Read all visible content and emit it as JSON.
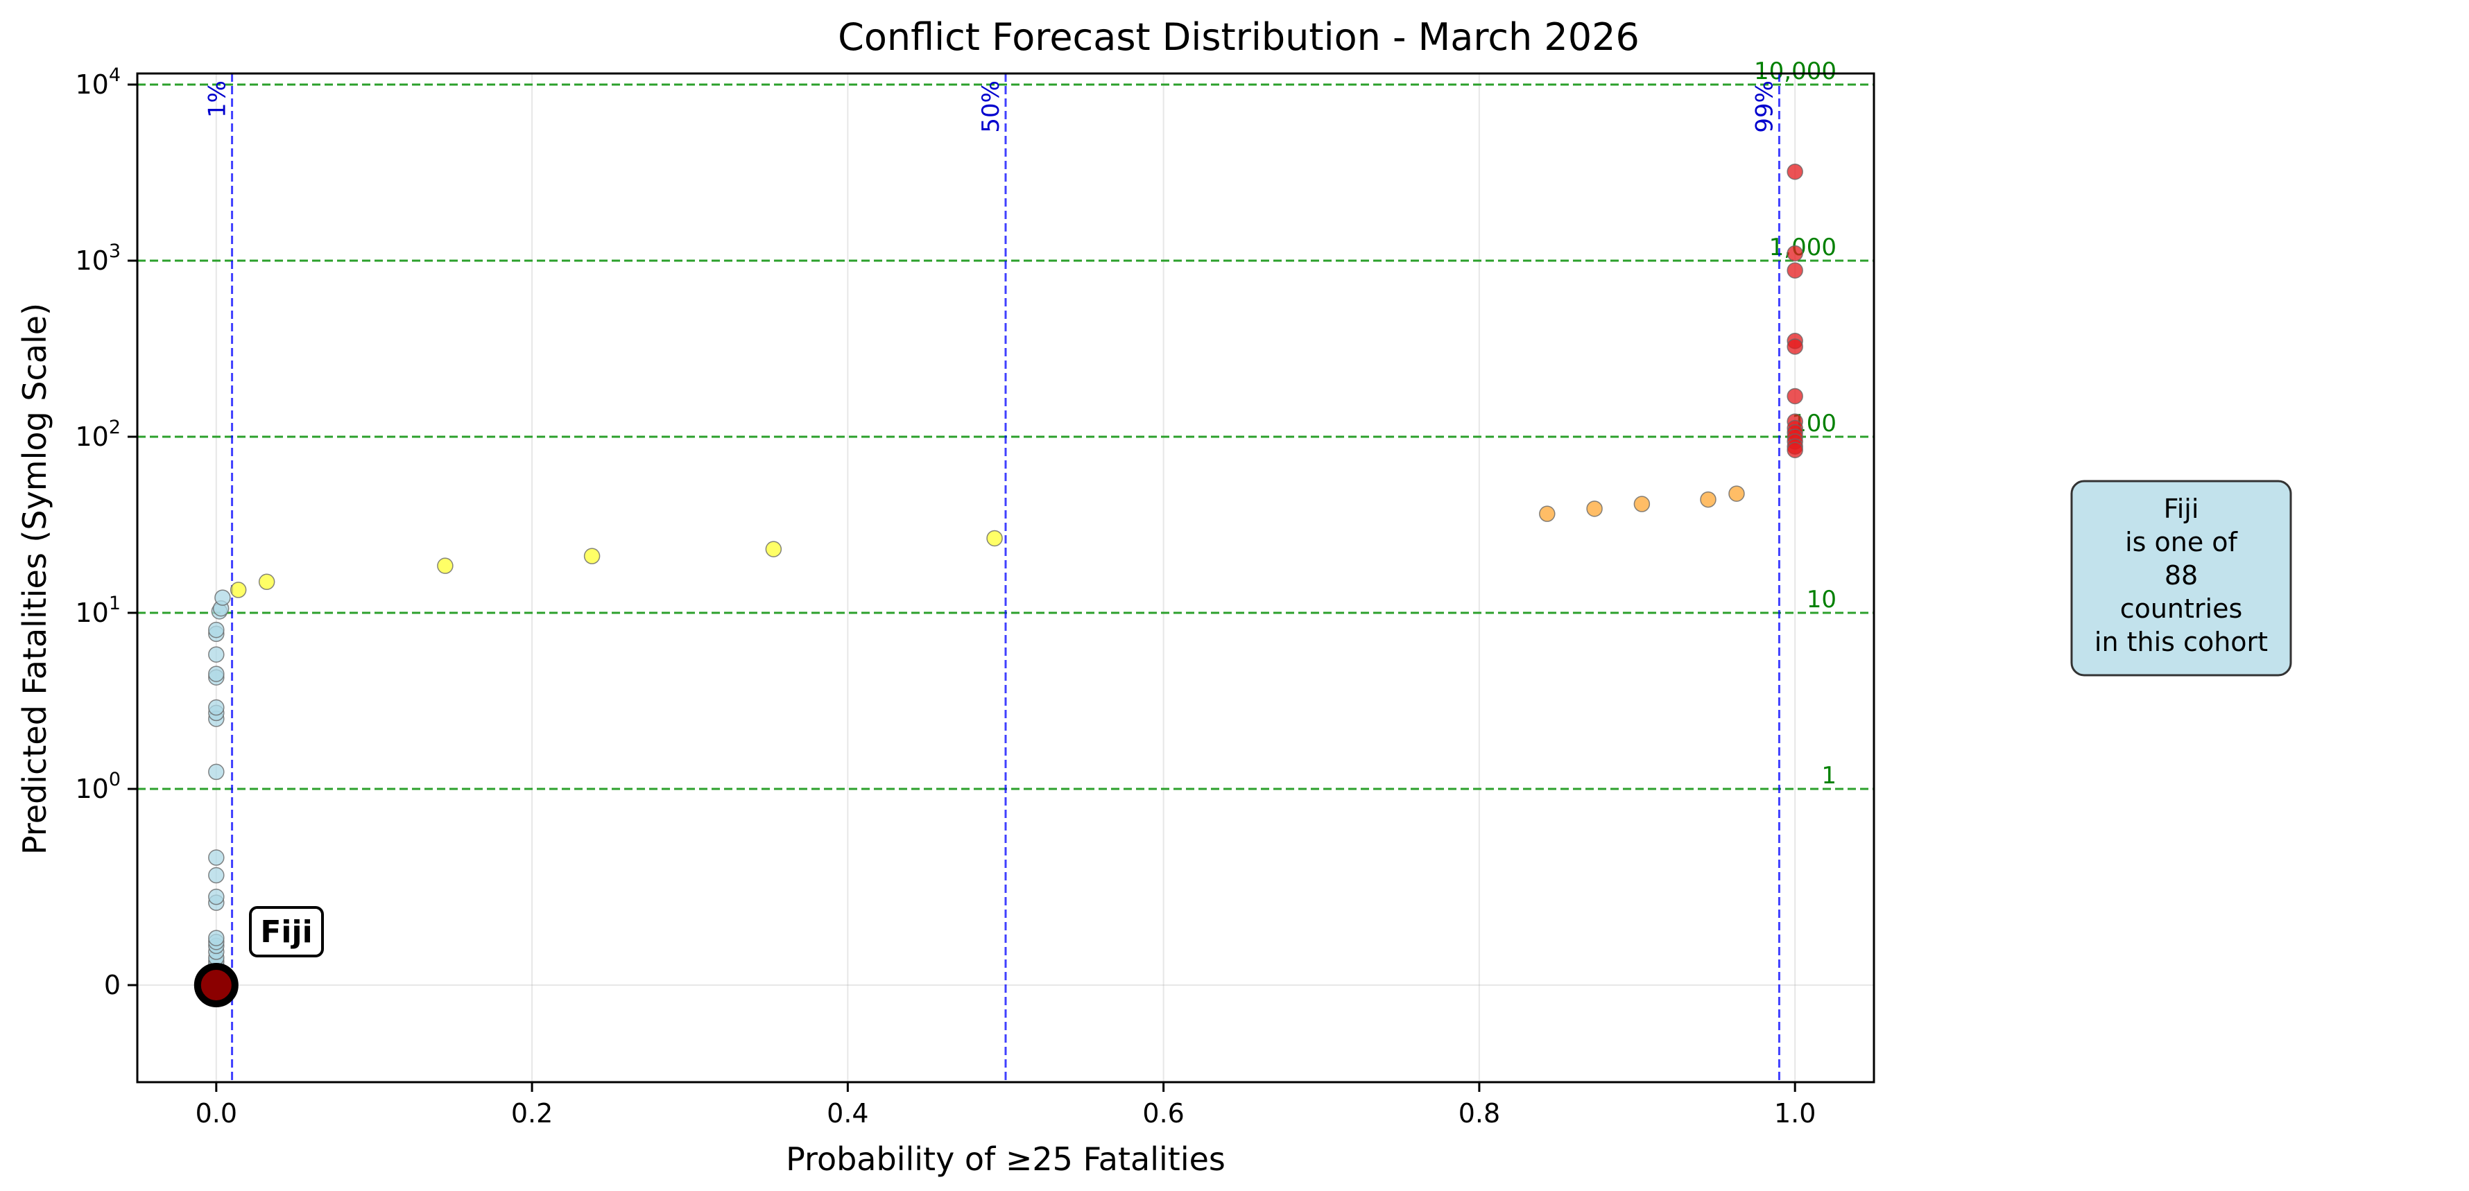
{
  "chart_data": {
    "type": "scatter",
    "title": "Conflict Forecast Distribution - March 2026",
    "xlabel": "Probability of ≥25 Fatalities",
    "ylabel": "Predicted Fatalities (Symlog Scale)",
    "xlim": [
      -0.05,
      1.05
    ],
    "ylim": [
      -0.5,
      12000
    ],
    "yscale": "symlog",
    "grid": true,
    "x_ticks": [
      {
        "value": 0.0,
        "label": "0.0"
      },
      {
        "value": 0.2,
        "label": "0.2"
      },
      {
        "value": 0.4,
        "label": "0.4"
      },
      {
        "value": 0.6,
        "label": "0.6"
      },
      {
        "value": 0.8,
        "label": "0.8"
      },
      {
        "value": 1.0,
        "label": "1.0"
      }
    ],
    "y_ticks": [
      {
        "value": 0,
        "base": "0",
        "exp": ""
      },
      {
        "value": 1,
        "base": "10",
        "exp": "0"
      },
      {
        "value": 10,
        "base": "10",
        "exp": "1"
      },
      {
        "value": 100,
        "base": "10",
        "exp": "2"
      },
      {
        "value": 1000,
        "base": "10",
        "exp": "3"
      },
      {
        "value": 10000,
        "base": "10",
        "exp": "4"
      }
    ],
    "reference_lines_horizontal": [
      {
        "value": 1,
        "label": "1"
      },
      {
        "value": 10,
        "label": "10"
      },
      {
        "value": 100,
        "label": "100"
      },
      {
        "value": 1000,
        "label": "1,000"
      },
      {
        "value": 10000,
        "label": "10,000"
      }
    ],
    "reference_lines_vertical": [
      {
        "value": 0.01,
        "label": "1%"
      },
      {
        "value": 0.5,
        "label": "50%"
      },
      {
        "value": 0.99,
        "label": "99%"
      }
    ],
    "colors": {
      "low": "#add8e6",
      "medium": "#ffff33",
      "high": "#ffa733",
      "very_high": "#e41a1c",
      "highlight": "#8b0000",
      "hline": "#2ca02c",
      "vline": "#0000ff"
    },
    "series": [
      {
        "color_key": "low",
        "points": [
          [
            0.0,
            0.0
          ],
          [
            0.0,
            0.01
          ],
          [
            0.0,
            0.02
          ],
          [
            0.0,
            0.03
          ],
          [
            0.0,
            0.04
          ],
          [
            0.0,
            0.05
          ],
          [
            0.0,
            0.06
          ],
          [
            0.0,
            0.07
          ],
          [
            0.0,
            0.08
          ],
          [
            0.0,
            0.1
          ],
          [
            0.0,
            0.12
          ],
          [
            0.0,
            0.14
          ],
          [
            0.0,
            0.17
          ],
          [
            0.0,
            0.2
          ],
          [
            0.0,
            0.22
          ],
          [
            0.0,
            0.24
          ],
          [
            0.0,
            0.42
          ],
          [
            0.0,
            0.45
          ],
          [
            0.0,
            0.56
          ],
          [
            0.0,
            0.65
          ],
          [
            0.0,
            1.25
          ],
          [
            0.0,
            2.5
          ],
          [
            0.0,
            2.7
          ],
          [
            0.0,
            2.9
          ],
          [
            0.0,
            4.3
          ],
          [
            0.0,
            4.5
          ],
          [
            0.0,
            5.8
          ],
          [
            0.0,
            7.6
          ],
          [
            0.0,
            8.0
          ],
          [
            0.002,
            10.2
          ],
          [
            0.003,
            10.6
          ],
          [
            0.004,
            12.2
          ]
        ]
      },
      {
        "color_key": "medium",
        "points": [
          [
            0.014,
            13.5
          ],
          [
            0.032,
            15.0
          ],
          [
            0.145,
            18.5
          ],
          [
            0.238,
            21.0
          ],
          [
            0.353,
            23.0
          ],
          [
            0.493,
            26.5
          ]
        ]
      },
      {
        "color_key": "high",
        "points": [
          [
            0.843,
            36.5
          ],
          [
            0.873,
            39.0
          ],
          [
            0.903,
            41.5
          ],
          [
            0.945,
            44.0
          ],
          [
            0.963,
            47.5
          ]
        ]
      },
      {
        "color_key": "very_high",
        "points": [
          [
            1.0,
            3200
          ],
          [
            1.0,
            1100
          ],
          [
            1.0,
            880
          ],
          [
            1.0,
            350
          ],
          [
            1.0,
            325
          ],
          [
            1.0,
            170
          ],
          [
            1.0,
            122
          ],
          [
            1.0,
            112
          ],
          [
            1.0,
            106
          ],
          [
            1.0,
            100
          ],
          [
            1.0,
            94
          ],
          [
            1.0,
            88
          ],
          [
            1.0,
            84
          ]
        ]
      }
    ],
    "highlight": {
      "name": "Fiji",
      "x": 0.0,
      "y": 0.0,
      "label": "Fiji"
    },
    "info_box": {
      "lines": [
        "Fiji",
        "is one of",
        "88",
        "countries",
        "in this cohort"
      ]
    }
  }
}
